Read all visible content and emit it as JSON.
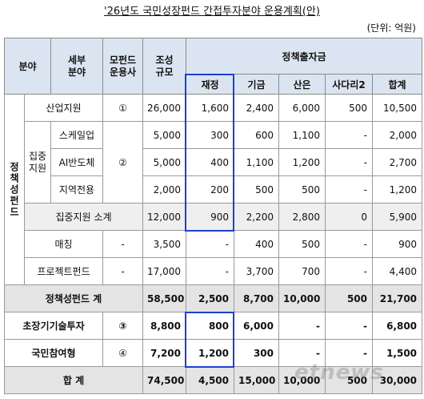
{
  "title": "'26년도 국민성장펀드 간접투자분야 운용계획(안)",
  "unit": "(단위: 억원)",
  "watermark": "etnews",
  "header": {
    "field": "분야",
    "sub_field": [
      "세부",
      "분야"
    ],
    "manager": [
      "모펀드",
      "운용사"
    ],
    "size": [
      "조성",
      "규모"
    ],
    "policy_investment": "정책출자금",
    "sources": [
      "재정",
      "기금",
      "산은",
      "사다리2",
      "합계"
    ]
  },
  "groups": {
    "policy_fund": "정책성펀드",
    "focus_support": [
      "집중",
      "지원"
    ]
  },
  "rows": [
    {
      "label": "산업지원",
      "manager": "①",
      "values": [
        "26,000",
        "1,600",
        "2,400",
        "6,000",
        "500",
        "10,500"
      ]
    },
    {
      "label": "스케일업",
      "manager": "②",
      "values": [
        "5,000",
        "300",
        "600",
        "1,100",
        "-",
        "2,000"
      ]
    },
    {
      "label": "AI반도체",
      "values": [
        "5,000",
        "400",
        "1,100",
        "1,200",
        "-",
        "2,700"
      ]
    },
    {
      "label": "지역전용",
      "values": [
        "2,000",
        "200",
        "500",
        "500",
        "-",
        "1,200"
      ]
    },
    {
      "label": "집중지원 소계",
      "values": [
        "12,000",
        "900",
        "2,200",
        "2,800",
        "0",
        "5,900"
      ]
    },
    {
      "label": "매칭",
      "manager": "-",
      "values": [
        "3,500",
        "-",
        "400",
        "500",
        "-",
        "900"
      ]
    },
    {
      "label": "프로젝트펀드",
      "manager": "-",
      "values": [
        "17,000",
        "-",
        "3,700",
        "700",
        "-",
        "4,400"
      ]
    },
    {
      "label": "정책성펀드 계",
      "values": [
        "58,500",
        "2,500",
        "8,700",
        "10,000",
        "500",
        "21,700"
      ]
    },
    {
      "label": "초장기기술투자",
      "manager": "③",
      "values": [
        "8,800",
        "800",
        "6,000",
        "-",
        "-",
        "6,800"
      ]
    },
    {
      "label": "국민참여형",
      "manager": "④",
      "values": [
        "7,200",
        "1,200",
        "300",
        "-",
        "-",
        "1,500"
      ]
    },
    {
      "label": "합 계",
      "values": [
        "74,500",
        "4,500",
        "15,000",
        "10,000",
        "500",
        "30,000"
      ]
    }
  ]
}
